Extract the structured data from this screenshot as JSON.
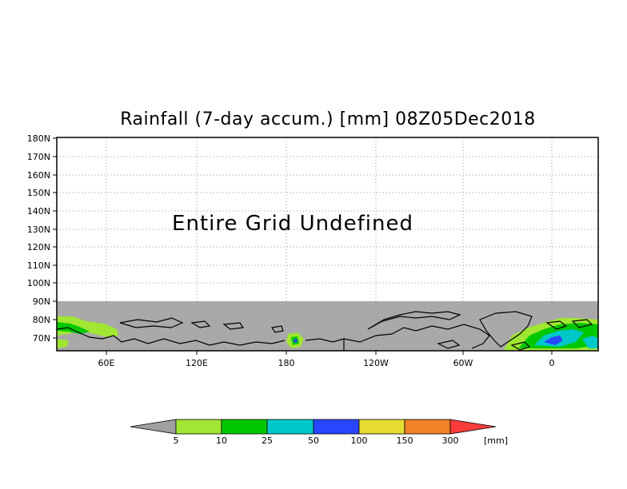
{
  "title": "Rainfall (7-day accum.) [mm] 08Z05Dec2018",
  "message": "Entire Grid Undefined",
  "lat_labels": [
    "180N",
    "170N",
    "160N",
    "150N",
    "140N",
    "130N",
    "120N",
    "110N",
    "100N",
    "90N",
    "80N",
    "70N"
  ],
  "lon_labels": [
    "60E",
    "120E",
    "180",
    "120W",
    "60W",
    "0"
  ],
  "colorbar": {
    "tick_labels": [
      "5",
      "10",
      "25",
      "50",
      "100",
      "150",
      "300"
    ],
    "units": "[mm]",
    "colors": {
      "under": "#a0a0a0",
      "5-10": "#a0e632",
      "10-25": "#00c800",
      "25-50": "#00c8c8",
      "50-100": "#2846ff",
      "100-150": "#e6dc32",
      "150-300": "#f08228",
      "over": "#fa3c3c"
    }
  },
  "land_mask_color": "#a9a9a9"
}
